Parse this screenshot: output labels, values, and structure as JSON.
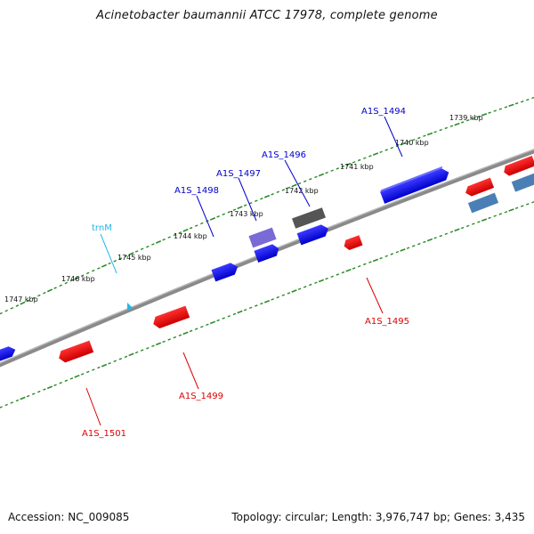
{
  "title": "Acinetobacter baumannii ATCC 17978, complete genome",
  "footer": {
    "accession": "Accession: NC_009085",
    "summary": "Topology: circular; Length: 3,976,747 bp; Genes: 3,435"
  },
  "colors": {
    "gene_forward": "#0000ee",
    "gene_reverse": "#ee0000",
    "trna": "#22b8e8",
    "tick": "#2a8a2a",
    "backbone": "#8a8a8a",
    "pseudo_gray": "#555555",
    "purple": "#7a6ad6",
    "steel": "#4a7fb5"
  },
  "scale_labels": [
    "1739 kbp",
    "1740 kbp",
    "1741 kbp",
    "1742 kbp",
    "1743 kbp",
    "1744 kbp",
    "1745 kbp",
    "1746 kbp",
    "1747 kbp"
  ],
  "gene_labels": {
    "top": [
      "A1S_1494",
      "A1S_1496",
      "A1S_1497",
      "A1S_1498",
      "trnM"
    ],
    "bottom": [
      "A1S_1495",
      "A1S_1499",
      "A1S_1501"
    ]
  }
}
